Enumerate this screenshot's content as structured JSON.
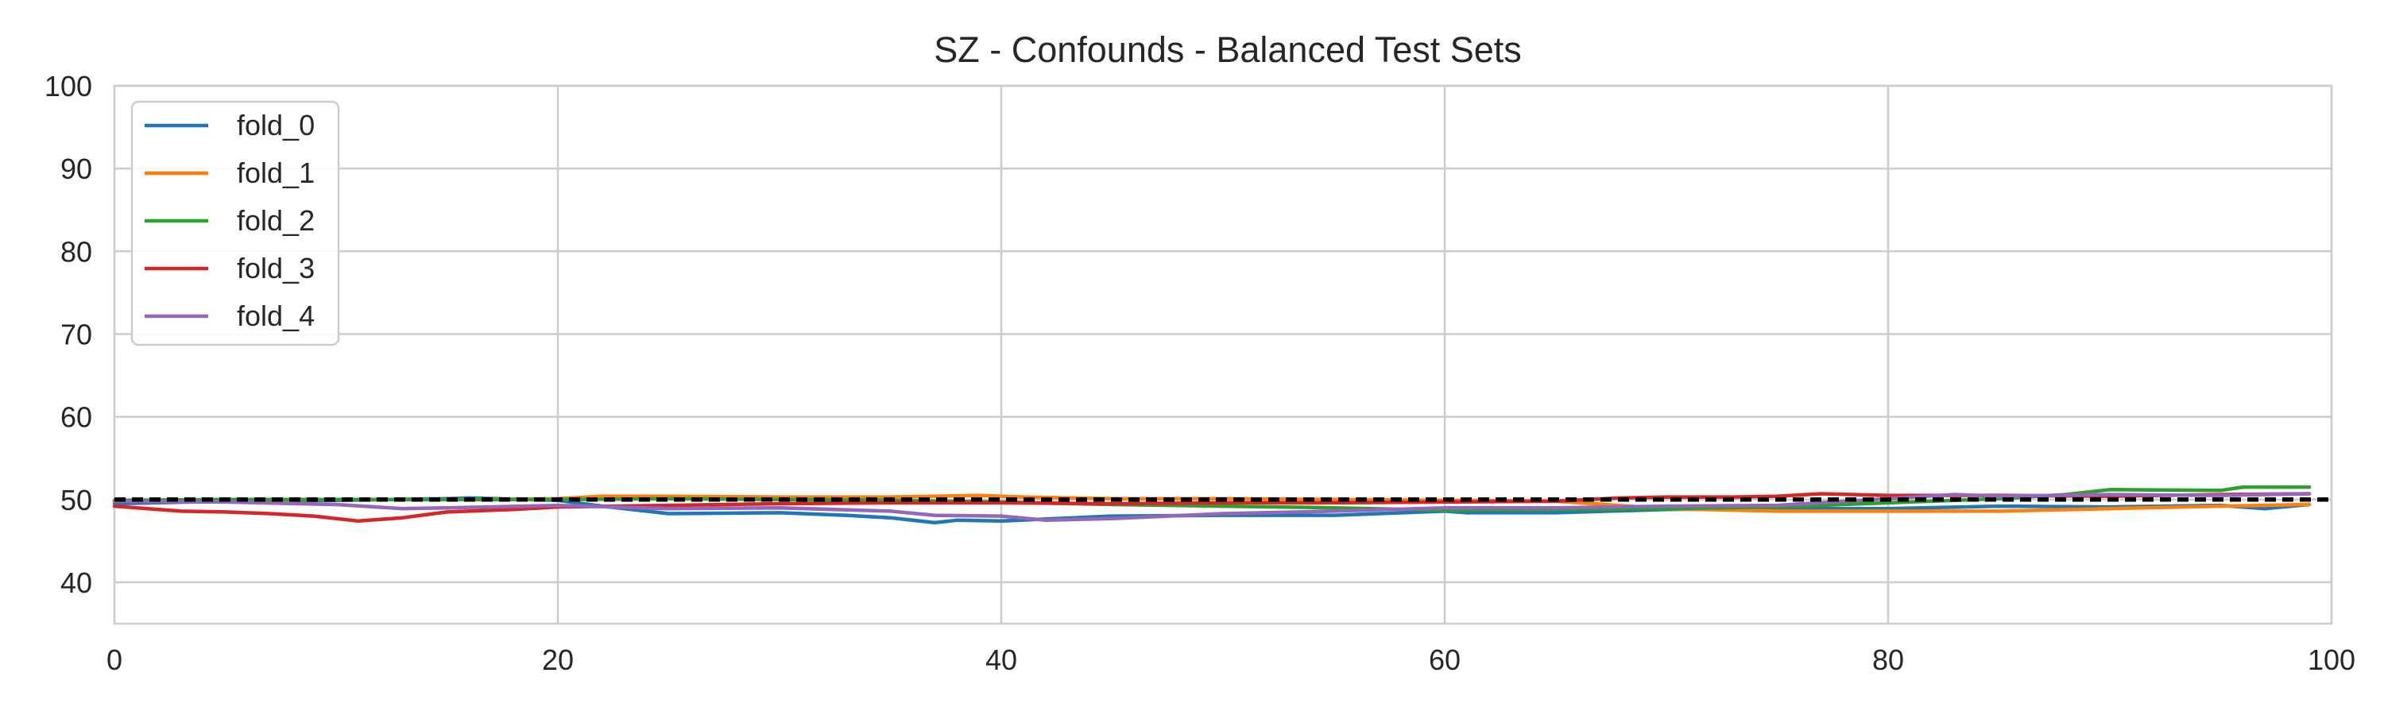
{
  "chart_data": {
    "type": "line",
    "title": "SZ - Confounds - Balanced Test Sets",
    "xlabel": "",
    "ylabel": "",
    "xlim": [
      0,
      100
    ],
    "ylim": [
      35,
      100
    ],
    "xticks": [
      0,
      20,
      40,
      60,
      80,
      100
    ],
    "yticks": [
      40,
      50,
      60,
      70,
      80,
      90,
      100
    ],
    "grid": true,
    "legend_position": "top-left",
    "reference_line": {
      "y": 50,
      "style": "dashed",
      "color": "#000000"
    },
    "series": [
      {
        "name": "fold_0",
        "color": "#1f77b4",
        "x": [
          0,
          5,
          10,
          15,
          16,
          20,
          22,
          25,
          30,
          33,
          35,
          37,
          38,
          40,
          45,
          50,
          55,
          60,
          61,
          65,
          70,
          75,
          80,
          85,
          90,
          95,
          97,
          99
        ],
        "y": [
          49.5,
          49.8,
          49.9,
          50.1,
          50.2,
          49.9,
          49.2,
          48.3,
          48.4,
          48.1,
          47.8,
          47.2,
          47.5,
          47.4,
          48.0,
          48.1,
          48.1,
          48.6,
          48.4,
          48.4,
          48.8,
          48.9,
          48.9,
          49.2,
          49.1,
          49.3,
          48.9,
          49.4
        ]
      },
      {
        "name": "fold_1",
        "color": "#ff7f0e",
        "x": [
          0,
          5,
          10,
          15,
          20,
          22,
          25,
          30,
          35,
          39,
          41,
          45,
          50,
          55,
          60,
          65,
          70,
          75,
          80,
          85,
          90,
          95,
          99
        ],
        "y": [
          49.8,
          49.9,
          50.0,
          50.0,
          50.1,
          50.4,
          50.4,
          50.3,
          50.3,
          50.5,
          50.3,
          50.1,
          50.1,
          50.0,
          49.9,
          49.8,
          48.9,
          48.6,
          48.6,
          48.6,
          48.9,
          49.2,
          49.4
        ]
      },
      {
        "name": "fold_2",
        "color": "#2ca02c",
        "x": [
          0,
          5,
          10,
          15,
          20,
          25,
          30,
          35,
          40,
          45,
          50,
          55,
          60,
          65,
          70,
          75,
          80,
          85,
          88,
          90,
          95,
          96,
          99
        ],
        "y": [
          49.9,
          50.0,
          50.0,
          50.0,
          50.0,
          50.1,
          50.0,
          49.9,
          49.7,
          49.4,
          49.2,
          49.0,
          48.7,
          48.8,
          48.9,
          49.1,
          49.6,
          50.1,
          50.6,
          51.2,
          51.1,
          51.5,
          51.5
        ]
      },
      {
        "name": "fold_3",
        "color": "#d62728",
        "x": [
          0,
          3,
          5,
          7,
          9,
          11,
          13,
          15,
          18,
          20,
          25,
          30,
          35,
          40,
          45,
          50,
          55,
          60,
          65,
          68,
          70,
          73,
          75,
          77,
          80,
          85,
          90,
          95,
          99
        ],
        "y": [
          49.2,
          48.6,
          48.5,
          48.3,
          48.0,
          47.4,
          47.8,
          48.5,
          48.8,
          49.1,
          49.3,
          49.5,
          49.6,
          49.6,
          49.5,
          49.6,
          49.6,
          49.7,
          49.8,
          50.2,
          50.3,
          50.3,
          50.4,
          50.7,
          50.5,
          50.5,
          50.4,
          50.6,
          50.7
        ]
      },
      {
        "name": "fold_4",
        "color": "#9467bd",
        "x": [
          0,
          5,
          10,
          13,
          15,
          20,
          25,
          30,
          35,
          37,
          40,
          42,
          45,
          50,
          55,
          60,
          65,
          70,
          75,
          80,
          83,
          85,
          90,
          95,
          99
        ],
        "y": [
          49.8,
          49.7,
          49.4,
          48.9,
          49.0,
          49.3,
          48.9,
          49.0,
          48.6,
          48.1,
          48.0,
          47.5,
          47.7,
          48.3,
          48.6,
          49.0,
          49.0,
          49.2,
          49.3,
          50.1,
          50.6,
          50.4,
          50.6,
          50.5,
          50.7
        ]
      }
    ]
  }
}
